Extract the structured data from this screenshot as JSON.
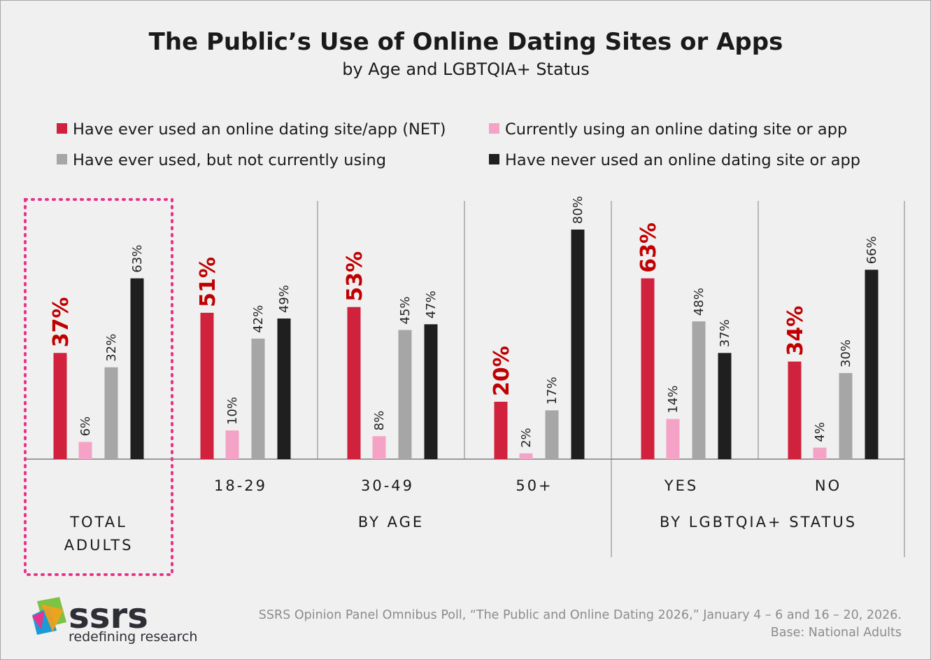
{
  "chart_data": {
    "type": "bar",
    "title": "The Public’s Use of Online Dating Sites or Apps",
    "subtitle": "by Age and LGBTQIA+ Status",
    "ylim": [
      0,
      100
    ],
    "grid": false,
    "legend_position": "top",
    "categories": [
      "",
      "18-29",
      "30-49",
      "50+",
      "YES",
      "NO"
    ],
    "groups": [
      {
        "label_lines": [
          "TOTAL",
          "ADULTS"
        ],
        "categories": [
          ""
        ]
      },
      {
        "label_lines": [
          "BY AGE"
        ],
        "categories": [
          "18-29",
          "30-49",
          "50+"
        ]
      },
      {
        "label_lines": [
          "BY LGBTQIA+ STATUS"
        ],
        "categories": [
          "YES",
          "NO"
        ]
      }
    ],
    "highlighted_category": "",
    "series": [
      {
        "name": "Have ever used an online dating site/app (NET)",
        "color": "#d0213d",
        "values": [
          37,
          51,
          53,
          20,
          63,
          34
        ],
        "labels": [
          "37%",
          "51%",
          "53%",
          "20%",
          "63%",
          "34%"
        ]
      },
      {
        "name": "Currently using an online dating site or app",
        "color": "#f4a3c6",
        "values": [
          6,
          10,
          8,
          2,
          14,
          4
        ],
        "labels": [
          "6%",
          "10%",
          "8%",
          "2%",
          "14%",
          "4%"
        ]
      },
      {
        "name": "Have ever used, but not currently using",
        "color": "#a6a6a6",
        "values": [
          32,
          42,
          45,
          17,
          48,
          30
        ],
        "labels": [
          "32%",
          "42%",
          "45%",
          "17%",
          "48%",
          "30%"
        ]
      },
      {
        "name": "Have never used an online dating site or app",
        "color": "#1f1f1f",
        "values": [
          63,
          49,
          47,
          80,
          37,
          66
        ],
        "labels": [
          "63%",
          "49%",
          "47%",
          "80%",
          "37%",
          "66%"
        ]
      }
    ]
  },
  "source": {
    "line1": "SSRS Opinion Panel Omnibus Poll, “The Public and Online Dating 2026,” January 4 – 6 and 16 – 20, 2026.",
    "line2": "Base: National Adults"
  },
  "logo": {
    "name": "ssrs",
    "tagline": "redefining research"
  },
  "colors": {
    "background": "#f0f0f0",
    "highlight_border": "#e8338a",
    "emphasis_label": "#c00000"
  }
}
